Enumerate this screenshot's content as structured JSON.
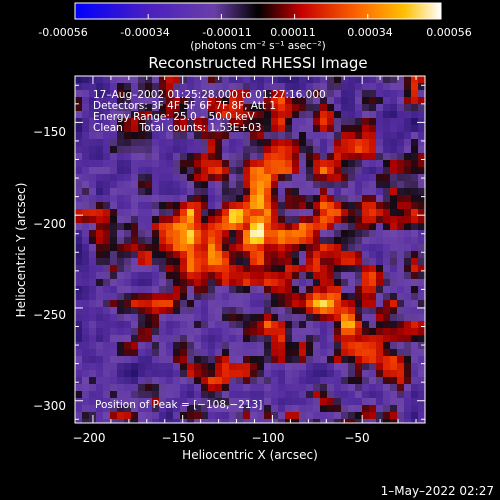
{
  "colorbar": {
    "tick_labels": [
      "-0.00056",
      "-0.00034",
      "-0.00011",
      "0.00011",
      "0.00034",
      "0.00056"
    ],
    "unit_label": "(photons cm⁻² s⁻¹ asec⁻²)"
  },
  "chart_data": {
    "type": "heatmap",
    "title": "Reconstructed RHESSI Image",
    "xlabel": "Heliocentric X (arcsec)",
    "ylabel": "Heliocentric Y (arcsec)",
    "xlim": [
      -210,
      -15
    ],
    "ylim": [
      -312,
      -125
    ],
    "x_ticks": [
      -200,
      -150,
      -100,
      -50
    ],
    "y_ticks": [
      -150,
      -200,
      -250,
      -300
    ],
    "x_tick_labels": [
      "−200",
      "−150",
      "−100",
      "−50"
    ],
    "y_tick_labels": [
      "−150",
      "−200",
      "−250",
      "−300"
    ],
    "value_range": [
      -0.00056,
      0.00056
    ],
    "colormap": "rhessi-purple-red-yellow",
    "peak_position": [
      -108,
      -213
    ],
    "info_lines": [
      "17–Aug–2002 01:25:28.000 to 01:27:16.000",
      "Detectors: 3F 4F 5F 6F 7F 8F, Att 1",
      "Energy Range: 25.0 – 50.0 keV",
      "Clean     Total counts: 1.53E+03"
    ],
    "peak_label": "Position of Peak = [−108,−213]",
    "grid": false,
    "legend": "none"
  },
  "footer": {
    "timestamp": "1–May–2022 02:27"
  }
}
